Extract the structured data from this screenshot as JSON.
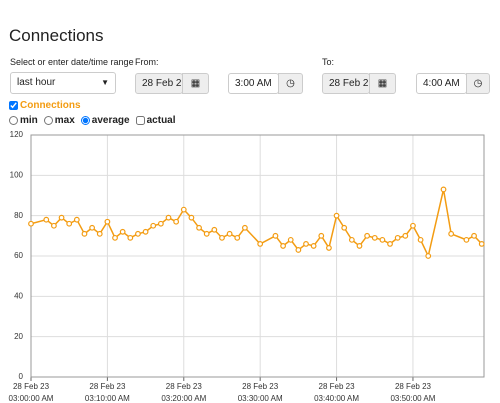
{
  "header": {
    "title": "Connections"
  },
  "controls": {
    "range_label": "Select or enter date/time range",
    "range_value": "last hour",
    "from_label": "From:",
    "from_date": "28 Feb 2",
    "from_time": "3:00 AM",
    "to_label": "To:",
    "to_date": "28 Feb 2",
    "to_time": "4:00 AM",
    "series_checked": true,
    "options": [
      {
        "label": "min",
        "kind": "radio",
        "checked": false
      },
      {
        "label": "max",
        "kind": "radio",
        "checked": false
      },
      {
        "label": "average",
        "kind": "radio",
        "checked": true
      },
      {
        "label": "actual",
        "kind": "checkbox",
        "checked": false
      }
    ]
  },
  "chart_data": {
    "type": "line",
    "x": [
      0,
      2,
      3,
      4,
      5,
      6,
      7,
      8,
      9,
      10,
      11,
      12,
      13,
      14,
      15,
      16,
      17,
      18,
      19,
      20,
      21,
      22,
      23,
      24,
      25,
      26,
      27,
      28,
      30,
      32,
      33,
      34,
      35,
      36,
      37,
      38,
      39,
      40,
      41,
      42,
      43,
      44,
      45,
      46,
      47,
      48,
      49,
      50,
      51,
      52,
      54,
      55,
      57,
      58,
      59
    ],
    "series": [
      {
        "name": "Connections",
        "color": "#f39c12",
        "values": [
          76,
          78,
          75,
          79,
          76,
          78,
          71,
          74,
          71,
          77,
          69,
          72,
          69,
          71,
          72,
          75,
          76,
          79,
          77,
          83,
          79,
          74,
          71,
          73,
          69,
          71,
          69,
          74,
          66,
          70,
          65,
          68,
          63,
          66,
          65,
          70,
          64,
          80,
          74,
          68,
          65,
          70,
          69,
          68,
          66,
          69,
          70,
          75,
          68,
          60,
          93,
          71,
          68,
          70,
          66
        ]
      }
    ],
    "xlim": [
      0,
      59.3
    ],
    "xticks": [
      {
        "value": 0,
        "label": [
          "28 Feb 23",
          "03:00:00 AM"
        ]
      },
      {
        "value": 10,
        "label": [
          "28 Feb 23",
          "03:10:00 AM"
        ]
      },
      {
        "value": 20,
        "label": [
          "28 Feb 23",
          "03:20:00 AM"
        ]
      },
      {
        "value": 30,
        "label": [
          "28 Feb 23",
          "03:30:00 AM"
        ]
      },
      {
        "value": 40,
        "label": [
          "28 Feb 23",
          "03:40:00 AM"
        ]
      },
      {
        "value": 50,
        "label": [
          "28 Feb 23",
          "03:50:00 AM"
        ]
      }
    ],
    "ylim": [
      0,
      120
    ],
    "yticks": [
      0,
      20,
      40,
      60,
      80,
      100,
      120
    ],
    "grid": true
  }
}
